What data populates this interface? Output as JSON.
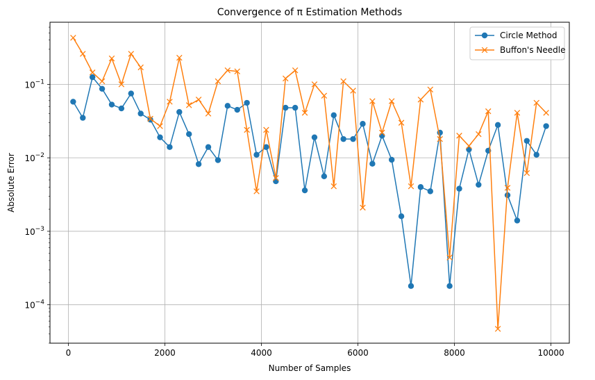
{
  "chart_data": {
    "type": "line",
    "title": "Convergence of π Estimation Methods",
    "xlabel": "Number of Samples",
    "ylabel": "Absolute Error",
    "yscale": "log",
    "xlim": [
      -380,
      10380
    ],
    "ylim": [
      3e-05,
      0.7
    ],
    "grid": true,
    "legend_position": "top-right",
    "x_ticks": [
      0,
      2000,
      4000,
      6000,
      8000,
      10000
    ],
    "x_tick_labels": [
      "0",
      "2000",
      "4000",
      "6000",
      "8000",
      "10000"
    ],
    "y_ticks": [
      0.0001,
      0.001,
      0.01,
      0.1
    ],
    "y_tick_labels": [
      {
        "base": "10",
        "exp": "−4"
      },
      {
        "base": "10",
        "exp": "−3"
      },
      {
        "base": "10",
        "exp": "−2"
      },
      {
        "base": "10",
        "exp": "−1"
      }
    ],
    "x": [
      100,
      300,
      500,
      700,
      900,
      1100,
      1300,
      1500,
      1700,
      1900,
      2100,
      2300,
      2500,
      2700,
      2900,
      3100,
      3300,
      3500,
      3700,
      3900,
      4100,
      4300,
      4500,
      4700,
      4900,
      5100,
      5300,
      5500,
      5700,
      5900,
      6100,
      6300,
      6500,
      6700,
      6900,
      7100,
      7300,
      7500,
      7700,
      7900,
      8100,
      8300,
      8500,
      8700,
      8900,
      9100,
      9300,
      9500,
      9700,
      9900
    ],
    "series": [
      {
        "name": "Circle Method",
        "color": "#1f77b4",
        "marker": "circle",
        "values": [
          0.058,
          0.035,
          0.125,
          0.087,
          0.053,
          0.047,
          0.075,
          0.04,
          0.033,
          0.019,
          0.014,
          0.042,
          0.021,
          0.0082,
          0.014,
          0.0093,
          0.051,
          0.045,
          0.056,
          0.011,
          0.014,
          0.0048,
          0.048,
          0.048,
          0.0036,
          0.019,
          0.0056,
          0.038,
          0.018,
          0.018,
          0.029,
          0.0083,
          0.02,
          0.0094,
          0.0016,
          0.00018,
          0.004,
          0.0035,
          0.022,
          0.00018,
          0.0038,
          0.013,
          0.0043,
          0.0125,
          0.028,
          0.0031,
          0.0014,
          0.017,
          0.011,
          0.027
        ]
      },
      {
        "name": "Buffon's Needle",
        "color": "#ff7f0e",
        "marker": "x",
        "values": [
          0.43,
          0.26,
          0.145,
          0.11,
          0.225,
          0.1,
          0.26,
          0.17,
          0.034,
          0.027,
          0.058,
          0.23,
          0.052,
          0.062,
          0.04,
          0.11,
          0.155,
          0.15,
          0.024,
          0.0035,
          0.024,
          0.0053,
          0.12,
          0.155,
          0.041,
          0.1,
          0.07,
          0.0041,
          0.11,
          0.082,
          0.0021,
          0.059,
          0.022,
          0.059,
          0.03,
          0.0041,
          0.062,
          0.085,
          0.018,
          0.00044,
          0.02,
          0.0145,
          0.021,
          0.043,
          4.7e-05,
          0.0039,
          0.041,
          0.0062,
          0.056,
          0.041
        ]
      }
    ]
  }
}
